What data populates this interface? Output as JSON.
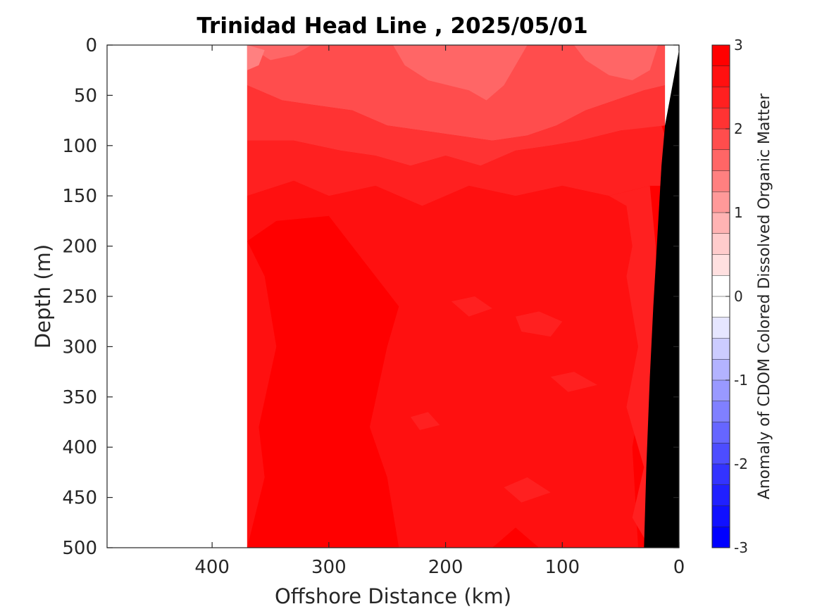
{
  "chart_data": {
    "type": "heatmap",
    "title": "Trinidad Head Line , 2025/05/01",
    "xlabel": "Offshore Distance (km)",
    "ylabel": "Depth (m)",
    "xlim": [
      490,
      0
    ],
    "ylim": [
      0,
      500
    ],
    "x_reversed": true,
    "y_reversed": true,
    "xticks": [
      400,
      300,
      200,
      100,
      0
    ],
    "xtick_labels": [
      "400",
      "300",
      "200",
      "100",
      "0"
    ],
    "yticks": [
      0,
      50,
      100,
      150,
      200,
      250,
      300,
      350,
      400,
      450,
      500
    ],
    "ytick_labels": [
      "0",
      "50",
      "100",
      "150",
      "200",
      "250",
      "300",
      "350",
      "400",
      "450",
      "500"
    ],
    "data_extent_km": [
      370,
      10
    ],
    "colorbar": {
      "label": "Anomaly of CDOM Colored Dissolved Organic Matter",
      "range": [
        -3,
        3
      ],
      "levels": 24,
      "ticks": [
        3,
        2,
        1,
        0,
        -1,
        -2,
        -3
      ],
      "tick_labels": [
        "3",
        "2",
        "1",
        "0",
        "-1",
        "-2",
        "-3"
      ],
      "colors": [
        "#ff0000",
        "#ff1010",
        "#ff2020",
        "#ff3333",
        "#ff4d4d",
        "#ff6666",
        "#ff8080",
        "#ff9999",
        "#ffb3b3",
        "#ffcccc",
        "#ffe0e0",
        "#ffffff",
        "#ffffff",
        "#e6e6ff",
        "#ccccff",
        "#b3b3ff",
        "#9999ff",
        "#8080ff",
        "#6666ff",
        "#4d4dff",
        "#3333ff",
        "#2020ff",
        "#1010ff",
        "#0000ff"
      ]
    },
    "field_anomaly": [
      {
        "depth": 0,
        "surface_mean": 1.9
      },
      {
        "depth": 50,
        "mean": 2.0
      },
      {
        "depth": 100,
        "mean": 2.4
      },
      {
        "depth": 150,
        "mean": 2.6
      },
      {
        "depth": 200,
        "mean": 2.7
      },
      {
        "depth": 300,
        "mean": 2.8
      },
      {
        "depth": 400,
        "mean": 2.85
      },
      {
        "depth": 500,
        "mean": 2.85
      }
    ],
    "colors": {
      "bathymetry": "#000000",
      "axis": "#262626"
    }
  }
}
